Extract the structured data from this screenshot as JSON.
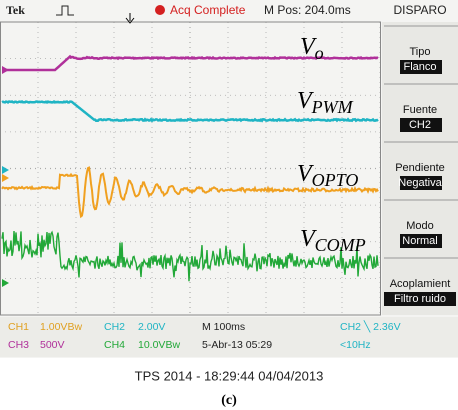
{
  "header": {
    "brand": "Tek",
    "status": "Acq Complete",
    "position": "M Pos: 204.0ms",
    "menu_title": "DISPARO"
  },
  "traces": [
    {
      "symbol": "V",
      "subscript": "o"
    },
    {
      "symbol": "V",
      "subscript": "PWM"
    },
    {
      "symbol": "V",
      "subscript": "OPTO"
    },
    {
      "symbol": "V",
      "subscript": "COMP"
    }
  ],
  "menu": [
    {
      "label": "Tipo",
      "value": "Flanco"
    },
    {
      "label": "Fuente",
      "value": "CH2"
    },
    {
      "label": "Pendiente",
      "value": "Negativa"
    },
    {
      "label": "Modo",
      "value": "Normal"
    },
    {
      "label": "Acoplamient",
      "value": "Filtro ruido"
    }
  ],
  "status": {
    "row1": [
      "CH1",
      "1.00VBw",
      "CH2",
      "2.00V",
      "M 100ms",
      "CH2 ╲ 2.36V"
    ],
    "row2": [
      "CH3",
      "500V",
      "CH4",
      "10.0VBw",
      "5-Abr-13 05:29",
      "<10Hz"
    ]
  },
  "caption": "TPS 2014 - 18:29:44  04/04/2013",
  "figure_label": "(c)"
}
